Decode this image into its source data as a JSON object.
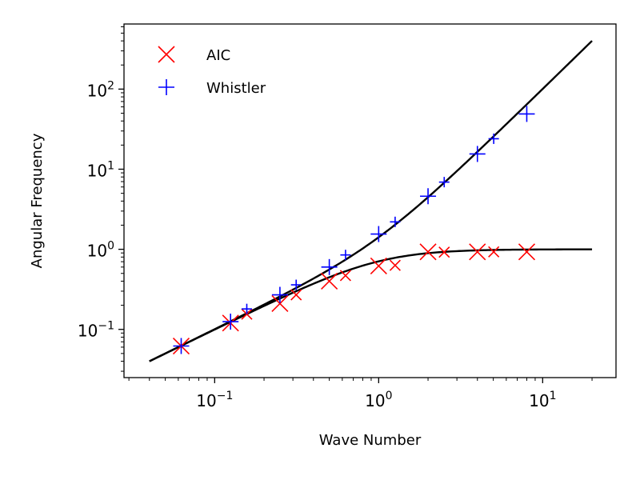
{
  "chart_data": {
    "type": "scatter",
    "x_scale": "log",
    "y_scale": "log",
    "xlabel": "Wave Number",
    "ylabel": "Angular Frequency",
    "xlim": [
      0.028,
      28
    ],
    "ylim": [
      0.025,
      650
    ],
    "x_ticks": [
      {
        "value": 0.1,
        "base": "10",
        "exp": "−1"
      },
      {
        "value": 1,
        "base": "10",
        "exp": "0"
      },
      {
        "value": 10,
        "base": "10",
        "exp": "1"
      }
    ],
    "y_ticks": [
      {
        "value": 0.1,
        "base": "10",
        "exp": "−1"
      },
      {
        "value": 1,
        "base": "10",
        "exp": "0"
      },
      {
        "value": 10,
        "base": "10",
        "exp": "1"
      },
      {
        "value": 100,
        "base": "10",
        "exp": "2"
      }
    ],
    "legend_position": "top-left",
    "legend": [
      {
        "name": "AIC",
        "marker": "x",
        "color": "#ff0000"
      },
      {
        "name": "Whistler",
        "marker": "+",
        "color": "#0000ff"
      }
    ],
    "curves": [
      {
        "name": "AIC dispersion",
        "color": "#000000",
        "x_range": [
          0.04,
          20
        ],
        "model": "aic"
      },
      {
        "name": "Whistler dispersion",
        "color": "#000000",
        "x_range": [
          0.04,
          20
        ],
        "model": "whistler"
      }
    ],
    "series": [
      {
        "name": "AIC",
        "marker": "x",
        "color": "#ff0000",
        "points": [
          {
            "x": 0.0625,
            "y": 0.062,
            "size": "large"
          },
          {
            "x": 0.125,
            "y": 0.12,
            "size": "large"
          },
          {
            "x": 0.157,
            "y": 0.155,
            "size": "small"
          },
          {
            "x": 0.25,
            "y": 0.21,
            "size": "large"
          },
          {
            "x": 0.314,
            "y": 0.27,
            "size": "small"
          },
          {
            "x": 0.5,
            "y": 0.4,
            "size": "large"
          },
          {
            "x": 0.628,
            "y": 0.47,
            "size": "small"
          },
          {
            "x": 1.0,
            "y": 0.62,
            "size": "large"
          },
          {
            "x": 1.26,
            "y": 0.63,
            "size": "small"
          },
          {
            "x": 2.0,
            "y": 0.93,
            "size": "large"
          },
          {
            "x": 2.51,
            "y": 0.92,
            "size": "small"
          },
          {
            "x": 4.0,
            "y": 0.93,
            "size": "large"
          },
          {
            "x": 5.03,
            "y": 0.93,
            "size": "small"
          },
          {
            "x": 8.0,
            "y": 0.93,
            "size": "large"
          }
        ]
      },
      {
        "name": "Whistler",
        "marker": "+",
        "color": "#0000ff",
        "points": [
          {
            "x": 0.0625,
            "y": 0.062,
            "size": "large"
          },
          {
            "x": 0.125,
            "y": 0.125,
            "size": "large"
          },
          {
            "x": 0.157,
            "y": 0.18,
            "size": "small"
          },
          {
            "x": 0.25,
            "y": 0.27,
            "size": "large"
          },
          {
            "x": 0.314,
            "y": 0.36,
            "size": "small"
          },
          {
            "x": 0.5,
            "y": 0.6,
            "size": "large"
          },
          {
            "x": 0.628,
            "y": 0.85,
            "size": "small"
          },
          {
            "x": 1.0,
            "y": 1.55,
            "size": "large"
          },
          {
            "x": 1.26,
            "y": 2.2,
            "size": "small"
          },
          {
            "x": 2.0,
            "y": 4.6,
            "size": "large"
          },
          {
            "x": 2.51,
            "y": 6.9,
            "size": "small"
          },
          {
            "x": 4.0,
            "y": 15.5,
            "size": "large"
          },
          {
            "x": 5.03,
            "y": 24,
            "size": "small"
          },
          {
            "x": 8.0,
            "y": 49,
            "size": "large"
          }
        ]
      }
    ]
  }
}
